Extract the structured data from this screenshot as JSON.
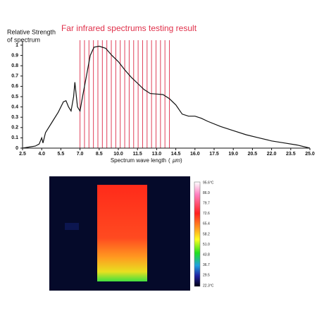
{
  "chart_data": {
    "type": "line",
    "title": "Far infrared spectrums testing result",
    "y_label": [
      "Relative Strength",
      "of spectrum"
    ],
    "x_label": "Spectrum wave length",
    "x_unit": "μm",
    "x": [
      2.5,
      3.0,
      3.5,
      3.8,
      4.0,
      4.1,
      4.3,
      4.8,
      5.3,
      5.7,
      5.9,
      6.1,
      6.3,
      6.5,
      6.6,
      6.8,
      7.0,
      7.2,
      7.5,
      7.8,
      8.1,
      8.5,
      9.0,
      9.5,
      10.0,
      10.5,
      11.0,
      11.5,
      12.0,
      12.5,
      13.0,
      13.5,
      14.0,
      14.5,
      15.0,
      15.5,
      16.0,
      16.5,
      17.0,
      18.0,
      19.0,
      20.0,
      21.0,
      22.0,
      23.0,
      24.0,
      25.0
    ],
    "values": [
      0.0,
      0.01,
      0.02,
      0.04,
      0.1,
      0.05,
      0.15,
      0.25,
      0.35,
      0.45,
      0.46,
      0.4,
      0.36,
      0.5,
      0.64,
      0.4,
      0.36,
      0.5,
      0.7,
      0.9,
      0.98,
      0.99,
      0.97,
      0.9,
      0.84,
      0.76,
      0.69,
      0.63,
      0.57,
      0.53,
      0.525,
      0.52,
      0.48,
      0.42,
      0.33,
      0.31,
      0.31,
      0.29,
      0.26,
      0.21,
      0.17,
      0.13,
      0.1,
      0.07,
      0.05,
      0.03,
      0.0
    ],
    "color": "#111111",
    "reference_lines": {
      "x": [
        7.0,
        7.35,
        7.7,
        8.05,
        8.4,
        8.75,
        9.1,
        9.45,
        9.8,
        10.15,
        10.5,
        10.85,
        11.2,
        11.55,
        11.9,
        12.25,
        12.6,
        12.95,
        13.3,
        13.65,
        14.0
      ],
      "color": "#e0405a"
    },
    "xlim": [
      2.5,
      25.0
    ],
    "ylim": [
      0,
      1
    ],
    "xticks": [
      {
        "value": 2.5,
        "label": "2.5"
      },
      {
        "value": 4,
        "label": "4.0"
      },
      {
        "value": 5.5,
        "label": "5.5"
      },
      {
        "value": 7,
        "label": "7.0"
      },
      {
        "value": 8.5,
        "label": "8.5"
      },
      {
        "value": 10,
        "label": "10.0"
      },
      {
        "value": 11.5,
        "label": "11.5"
      },
      {
        "value": 13,
        "label": "13.0"
      },
      {
        "value": 14.5,
        "label": "14.5"
      },
      {
        "value": 16,
        "label": "16.0"
      },
      {
        "value": 17.5,
        "label": "17.5"
      },
      {
        "value": 19,
        "label": "19.0"
      },
      {
        "value": 20.5,
        "label": "20.5"
      },
      {
        "value": 22,
        "label": "22.0"
      },
      {
        "value": 23.5,
        "label": "23.5"
      },
      {
        "value": 25,
        "label": "25.0"
      }
    ],
    "yticks": [
      0,
      0.1,
      0.2,
      0.3,
      0.4,
      0.5,
      0.6,
      0.7,
      0.8,
      0.9,
      1
    ]
  },
  "thermal_image": {
    "scale_labels": [
      "95.6°C",
      "86.9",
      "79.7",
      "72.6",
      "65.4",
      "58.2",
      "51.0",
      "43.8",
      "36.7",
      "29.5",
      "22.3°C"
    ]
  }
}
